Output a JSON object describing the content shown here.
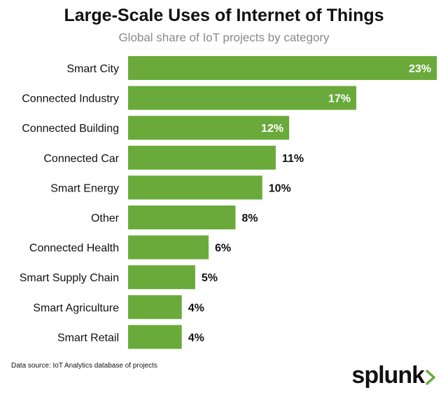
{
  "chart_data": {
    "type": "bar",
    "orientation": "horizontal",
    "title": "Large-Scale Uses of Internet of Things",
    "subtitle": "Global share of IoT projects by category",
    "categories": [
      "Smart City",
      "Connected Industry",
      "Connected Building",
      "Connected Car",
      "Smart Energy",
      "Other",
      "Connected Health",
      "Smart Supply Chain",
      "Smart Agriculture",
      "Smart Retail"
    ],
    "values": [
      23,
      17,
      12,
      11,
      10,
      8,
      6,
      5,
      4,
      4
    ],
    "value_labels": [
      "23%",
      "17%",
      "12%",
      "11%",
      "10%",
      "8%",
      "6%",
      "5%",
      "4%",
      "4%"
    ],
    "unit": "%",
    "xlim": [
      0,
      23
    ],
    "grid": false,
    "bar_color": "#6aaa3a"
  },
  "footer": {
    "source": "Data source: IoT Analytics database of projects",
    "logo": "splunk"
  },
  "colors": {
    "logo_chevron": "#6aaa3a",
    "inside_label": "#ffffff",
    "outside_label": "#111111"
  }
}
